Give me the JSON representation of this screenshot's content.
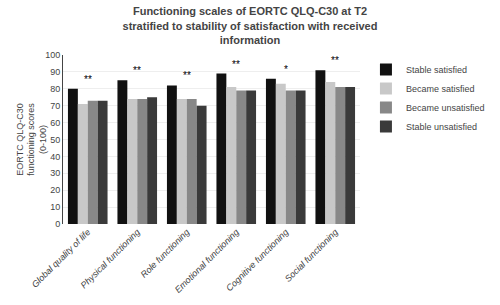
{
  "chart_data": {
    "type": "bar",
    "title": "Functioning scales of EORTC QLQ-C30 at T2\nstratified to stability of satisfaction with received\ninformation",
    "ylabel": "EORTC QLQ-C30\nfunctioning scores\n(0-100)",
    "categories": [
      "Global quality of life",
      "Physical functioning",
      "Role functioning",
      "Emotional functioning",
      "Cognitive functioning",
      "Social functioning"
    ],
    "series": [
      {
        "name": "Stable satisfied",
        "color": "#111111",
        "values": [
          80,
          85,
          82,
          89,
          86,
          91
        ]
      },
      {
        "name": "Became satisfied",
        "color": "#c8c8c8",
        "values": [
          71,
          74,
          74,
          81,
          83,
          84
        ]
      },
      {
        "name": "Became unsatisfied",
        "color": "#888888",
        "values": [
          73,
          74,
          74,
          79,
          79,
          81
        ]
      },
      {
        "name": "Stable unsatisfied",
        "color": "#3a3a3a",
        "values": [
          73,
          75,
          70,
          79,
          79,
          81
        ]
      }
    ],
    "annotations": [
      {
        "category": "Global quality of life",
        "text": "**"
      },
      {
        "category": "Physical functioning",
        "text": "**"
      },
      {
        "category": "Role functioning",
        "text": "**"
      },
      {
        "category": "Emotional functioning",
        "text": "**"
      },
      {
        "category": "Cognitive functioning",
        "text": "*"
      },
      {
        "category": "Social functioning",
        "text": "**"
      }
    ],
    "ylim": [
      0,
      100
    ],
    "yticks": [
      0,
      10,
      20,
      30,
      40,
      50,
      60,
      70,
      80,
      90,
      100
    ],
    "grid": true,
    "legend": "right"
  }
}
